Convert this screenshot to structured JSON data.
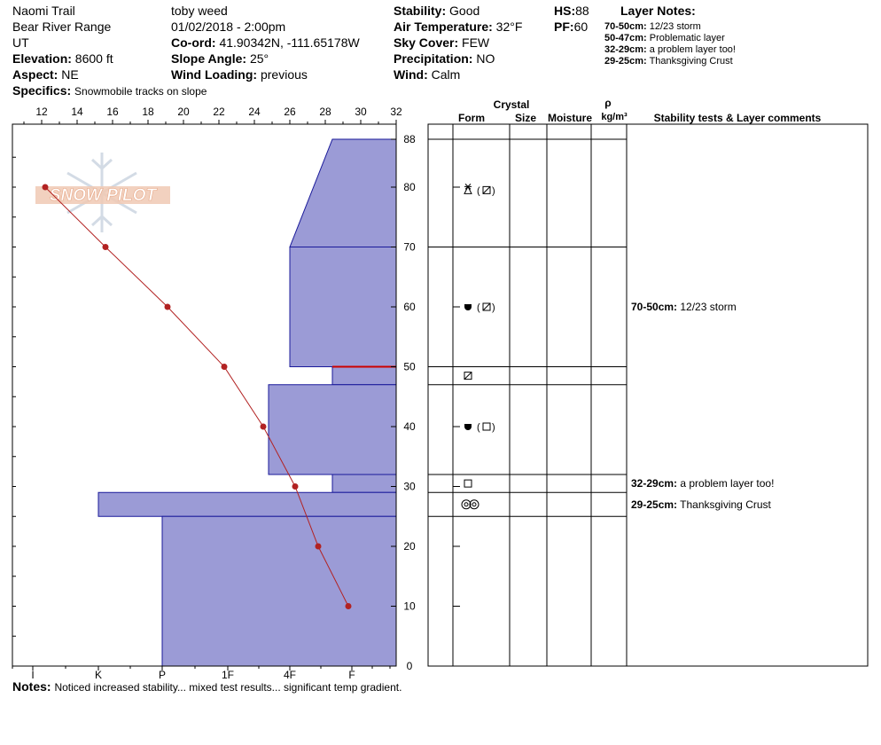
{
  "header": {
    "location": "Naomi Trail",
    "range": "Bear River Range",
    "state": "UT",
    "elevation_label": "Elevation:",
    "elevation": "8600 ft",
    "aspect_label": "Aspect:",
    "aspect": "NE",
    "specifics_label": "Specifics:",
    "specifics": "Snowmobile tracks on slope",
    "observer": "toby weed",
    "datetime": "01/02/2018 - 2:00pm",
    "coord_label": "Co-ord:",
    "coord": "41.90342N, -111.65178W",
    "slope_label": "Slope Angle:",
    "slope": "25°",
    "wind_loading_label": "Wind Loading:",
    "wind_loading": "previous",
    "stability_label": "Stability:",
    "stability": "Good",
    "air_temp_label": "Air Temperature:",
    "air_temp": "32°F",
    "sky_label": "Sky Cover:",
    "sky": "FEW",
    "precip_label": "Precipitation:",
    "precip": "NO",
    "wind_label": "Wind:",
    "wind": "Calm",
    "hs_label": "HS:",
    "hs": "88",
    "pf_label": "PF:",
    "pf": "60"
  },
  "layer_notes": {
    "title": "Layer Notes:",
    "items": [
      {
        "range": "70-50cm:",
        "text": "12/23 storm"
      },
      {
        "range": "50-47cm:",
        "text": "Problematic layer"
      },
      {
        "range": "32-29cm:",
        "text": "a problem layer too!"
      },
      {
        "range": "29-25cm:",
        "text": "Thanksgiving Crust"
      }
    ]
  },
  "logo": {
    "text": "SNOW PILOT"
  },
  "columns": {
    "crystal": "Crystal",
    "form": "Form",
    "size": "Size",
    "moisture": "Moisture",
    "rho": "ρ",
    "density": "kg/m³",
    "comments": "Stability tests & Layer comments"
  },
  "table_comments": [
    {
      "depth": 60,
      "range": "70-50cm:",
      "text": "12/23 storm"
    },
    {
      "depth": 30.5,
      "range": "32-29cm:",
      "text": "a problem layer too!"
    },
    {
      "depth": 27,
      "range": "29-25cm:",
      "text": "Thanksgiving Crust"
    }
  ],
  "notes": {
    "label": "Notes:",
    "text": "Noticed increased stability... mixed test results... significant temp gradient."
  },
  "colors": {
    "hardness_fill": "#9b9bd6",
    "hardness_stroke": "#1a1a9a",
    "temp_line": "#b22222",
    "weak_layer": "#cc0000"
  },
  "chart_data": {
    "type": "area",
    "title": "",
    "temp_axis": {
      "ticks": [
        "12",
        "14",
        "16",
        "18",
        "20",
        "22",
        "24",
        "26",
        "28",
        "30",
        "32"
      ],
      "range": [
        10,
        32
      ],
      "units": "°F",
      "position": "top"
    },
    "depth_axis": {
      "ticks": [
        "88",
        "80",
        "70",
        "60",
        "50",
        "40",
        "30",
        "20",
        "10",
        "0"
      ],
      "range": [
        0,
        88
      ],
      "units": "cm",
      "position": "right"
    },
    "hardness_axis": {
      "ticks": [
        "I",
        "K",
        "P",
        "1F",
        "4F",
        "F"
      ]
    },
    "hardness_layers": [
      {
        "top": 88,
        "bottom": 70,
        "hardness_top": "4F+",
        "hardness_bottom": "4F-"
      },
      {
        "top": 70,
        "bottom": 50,
        "hardness": "4F"
      },
      {
        "top": 50,
        "bottom": 47,
        "hardness": "4F+"
      },
      {
        "top": 47,
        "bottom": 32,
        "hardness": "1F+"
      },
      {
        "top": 32,
        "bottom": 29,
        "hardness": "4F+"
      },
      {
        "top": 29,
        "bottom": 25,
        "hardness": "K-"
      },
      {
        "top": 25,
        "bottom": 0,
        "hardness": "P"
      }
    ],
    "weak_layer_depth": 50,
    "temperature_profile": [
      {
        "depth": 80,
        "temp": 12.2
      },
      {
        "depth": 70,
        "temp": 15.6
      },
      {
        "depth": 60,
        "temp": 19.1
      },
      {
        "depth": 50,
        "temp": 22.3
      },
      {
        "depth": 40,
        "temp": 24.5
      },
      {
        "depth": 30,
        "temp": 26.3
      },
      {
        "depth": 20,
        "temp": 27.6
      },
      {
        "depth": 10,
        "temp": 29.3
      }
    ],
    "layer_boundaries": [
      88,
      70,
      50,
      47,
      32,
      29,
      25
    ],
    "crystal_forms": [
      {
        "depth": 79.5,
        "symbols": [
          "new-snow-rounding",
          "faceted-rounded"
        ]
      },
      {
        "depth": 60,
        "symbols": [
          "melt-form",
          "faceted-rounded"
        ]
      },
      {
        "depth": 48.5,
        "symbols": [
          "faceted-rounded"
        ]
      },
      {
        "depth": 40,
        "symbols": [
          "melt-form",
          "faceted"
        ]
      },
      {
        "depth": 30.5,
        "symbols": [
          "faceted"
        ]
      },
      {
        "depth": 27,
        "symbols": [
          "crust"
        ]
      }
    ]
  }
}
